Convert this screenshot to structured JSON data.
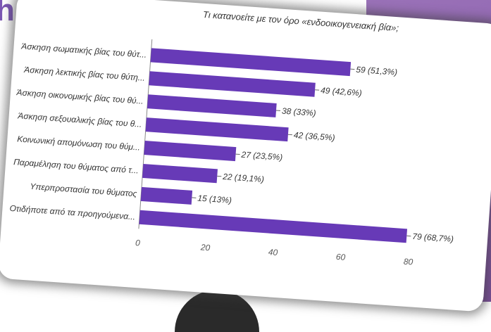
{
  "slide": {
    "letter_fragment": "h"
  },
  "chart_data": {
    "type": "bar",
    "orientation": "horizontal",
    "title": "Τι κατανοείτε με τον όρο «ενδοοικογενειακή βία»;",
    "categories": [
      "Άσκηση σωματικής βίας του θύτ...",
      "Άσκηση λεκτικής βίας του θύτη...",
      "Άσκηση οικονομικής βίας του θύ...",
      "Άσκηση σεξουαλικής βίας του θ...",
      "Κοινωνική απομόνωση του θύμ...",
      "Παραμέληση του θύματος από τ...",
      "Υπερπροστασία του θύματος",
      "Οτιδήποτε από τα προηγούμενα..."
    ],
    "values": [
      59,
      49,
      38,
      42,
      27,
      22,
      15,
      79
    ],
    "value_labels": [
      "59 (51,3%)",
      "49 (42,6%)",
      "38 (33%)",
      "42 (36,5%)",
      "27 (23,5%)",
      "22 (19,1%)",
      "15 (13%)",
      "79 (68,7%)"
    ],
    "xlim": [
      0,
      80
    ],
    "xticks": [
      "0",
      "20",
      "40",
      "60",
      "80"
    ],
    "bar_color": "#673ab7",
    "grid": false
  }
}
